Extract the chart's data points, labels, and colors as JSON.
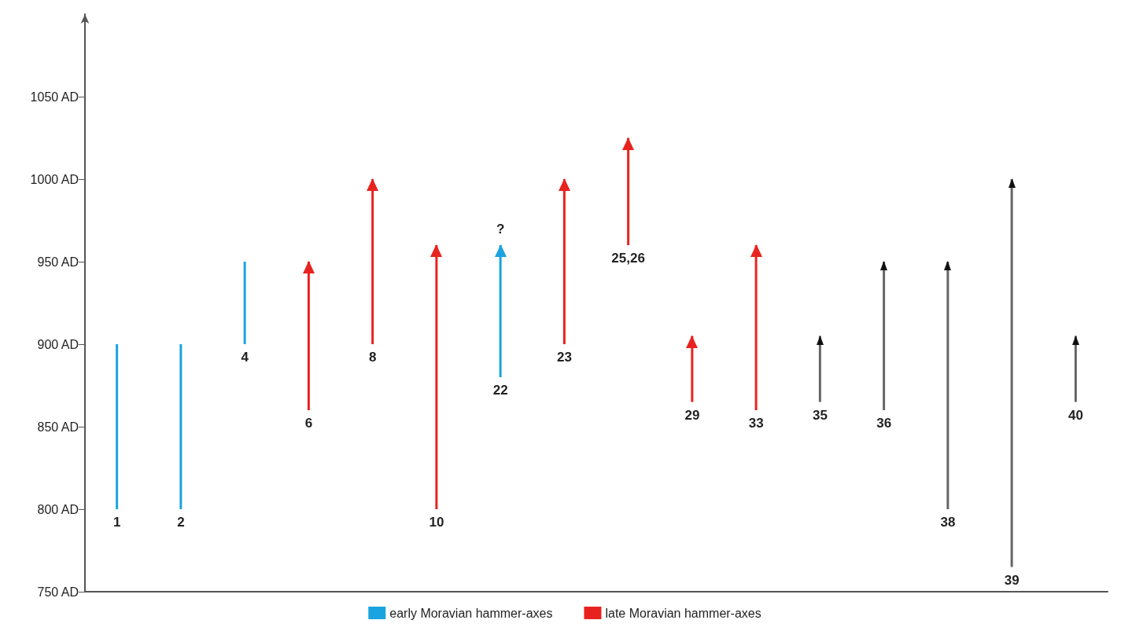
{
  "chart_data": {
    "type": "bar",
    "categories": [
      "1",
      "2",
      "4",
      "6",
      "8",
      "10",
      "22",
      "23",
      "25,26",
      "29",
      "33",
      "35",
      "36",
      "38",
      "39",
      "40"
    ],
    "series": [
      {
        "name": "early Moravian hammer-axes",
        "color": "#1aa3e0",
        "marker": "none",
        "values": [
          100,
          100,
          50,
          null,
          null,
          null,
          null,
          null,
          null,
          null,
          null,
          null,
          null,
          null,
          null,
          null
        ],
        "base": [
          800,
          800,
          900,
          null,
          null,
          null,
          null,
          null,
          null,
          null,
          null,
          null,
          null,
          null,
          null,
          null
        ]
      },
      {
        "color": "#1aa3e0",
        "marker": "triangle",
        "values": [
          null,
          null,
          null,
          null,
          null,
          null,
          80,
          null,
          null,
          null,
          null,
          null,
          null,
          null,
          null,
          null
        ],
        "base": [
          null,
          null,
          null,
          null,
          null,
          null,
          880,
          null,
          null,
          null,
          null,
          null,
          null,
          null,
          null,
          null
        ]
      },
      {
        "name": "late Moravian hammer-axes",
        "color": "#e8231f",
        "marker": "triangle",
        "values": [
          null,
          null,
          null,
          90,
          100,
          160,
          null,
          100,
          65,
          40,
          100,
          null,
          null,
          null,
          null,
          null
        ],
        "base": [
          null,
          null,
          null,
          860,
          900,
          800,
          null,
          900,
          960,
          865,
          860,
          null,
          null,
          null,
          null,
          null
        ]
      },
      {
        "color": "#666666",
        "marker": "triangle",
        "values": [
          null,
          null,
          null,
          null,
          null,
          null,
          null,
          null,
          null,
          null,
          null,
          40,
          90,
          150,
          235,
          40
        ],
        "base": [
          null,
          null,
          null,
          null,
          null,
          null,
          null,
          null,
          null,
          null,
          null,
          865,
          860,
          800,
          765,
          865
        ]
      }
    ],
    "ylim": [
      750,
      1100
    ],
    "yticks": [
      {
        "value": 750,
        "label": "750 AD"
      },
      {
        "value": 800,
        "label": "800 AD"
      },
      {
        "value": 850,
        "label": "850 AD"
      },
      {
        "value": 900,
        "label": "900 AD"
      },
      {
        "value": 950,
        "label": "950 AD"
      },
      {
        "value": 1000,
        "label": "1000 AD"
      },
      {
        "value": 1050,
        "label": "1050 AD"
      }
    ],
    "annotations": [
      {
        "text": "?",
        "x": "22",
        "y": 960
      }
    ],
    "legend": "bottom",
    "grid": false
  }
}
